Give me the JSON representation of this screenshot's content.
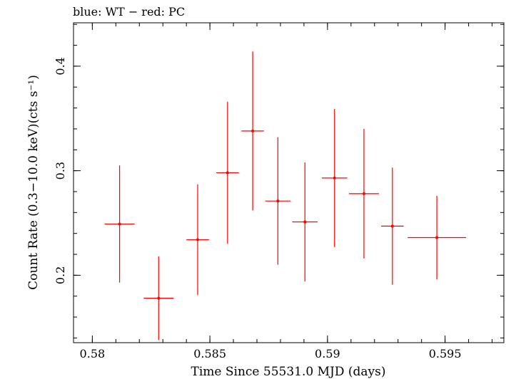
{
  "chart_data": {
    "type": "scatter",
    "title": "blue: WT − red: PC",
    "xlabel": "Time Since 55531.0 MJD (days)",
    "ylabel": "Count Rate (0.3−10.0 keV)(cts s⁻¹)",
    "xlim": [
      0.5792,
      0.5975
    ],
    "ylim": [
      0.1355,
      0.4415
    ],
    "xticks_major": [
      0.58,
      0.585,
      0.59,
      0.595
    ],
    "xtick_labels": [
      "0.58",
      "0.585",
      "0.59",
      "0.595"
    ],
    "xticks_minor_step": 0.001,
    "yticks_major": [
      0.2,
      0.3,
      0.4
    ],
    "ytick_labels": [
      "0.2",
      "0.3",
      "0.4"
    ],
    "yticks_minor_step": 0.02,
    "grid": false,
    "series": [
      {
        "color": "#ff0000",
        "points": [
          {
            "x": 0.58116,
            "xerr": 0.00064,
            "y": 0.249,
            "yerr": 0.056
          },
          {
            "x": 0.58282,
            "xerr": 0.00064,
            "y": 0.178,
            "yerr": 0.04
          },
          {
            "x": 0.58448,
            "xerr": 0.00048,
            "y": 0.234,
            "yerr": 0.053
          },
          {
            "x": 0.58575,
            "xerr": 0.00048,
            "y": 0.298,
            "yerr": 0.068
          },
          {
            "x": 0.58682,
            "xerr": 0.00048,
            "y": 0.338,
            "yerr": 0.076
          },
          {
            "x": 0.58789,
            "xerr": 0.00054,
            "y": 0.271,
            "yerr": 0.061
          },
          {
            "x": 0.58904,
            "xerr": 0.00054,
            "y": 0.251,
            "yerr": 0.057
          },
          {
            "x": 0.5903,
            "xerr": 0.00054,
            "y": 0.293,
            "yerr": 0.066
          },
          {
            "x": 0.59155,
            "xerr": 0.00064,
            "y": 0.278,
            "yerr": 0.062
          },
          {
            "x": 0.59276,
            "xerr": 0.00048,
            "y": 0.247,
            "yerr": 0.056
          },
          {
            "x": 0.59465,
            "xerr": 0.00124,
            "y": 0.236,
            "yerr": 0.04
          }
        ]
      }
    ]
  }
}
